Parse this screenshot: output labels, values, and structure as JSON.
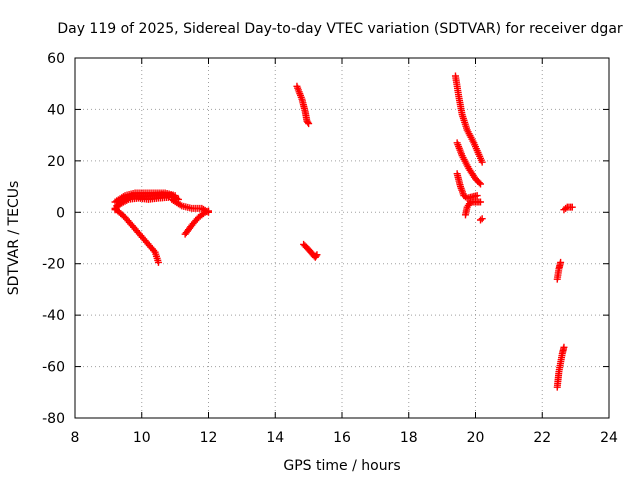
{
  "chart_data": {
    "type": "scatter",
    "title": "Day 119 of 2025, Sidereal Day-to-day VTEC variation (SDTVAR) for receiver dgar",
    "xlabel": "GPS time / hours",
    "ylabel": "SDTVAR / TECUs",
    "xlim": [
      8,
      24
    ],
    "ylim": [
      -80,
      60
    ],
    "xticks": [
      8,
      10,
      12,
      14,
      16,
      18,
      20,
      22,
      24
    ],
    "yticks": [
      -80,
      -60,
      -40,
      -20,
      0,
      20,
      40,
      60
    ],
    "grid": true,
    "marker": "plus",
    "color": "#ff0000",
    "segments": [
      {
        "points": [
          [
            9.2,
            1
          ],
          [
            9.4,
            4.5
          ],
          [
            9.7,
            6.5
          ],
          [
            10.0,
            6
          ],
          [
            10.3,
            6.5
          ],
          [
            10.6,
            6.8
          ],
          [
            10.9,
            6.5
          ],
          [
            11.1,
            5
          ]
        ]
      },
      {
        "points": [
          [
            9.2,
            4
          ],
          [
            9.5,
            6.5
          ],
          [
            9.8,
            7.5
          ],
          [
            10.1,
            7.5
          ],
          [
            10.4,
            7.5
          ],
          [
            10.7,
            7.5
          ],
          [
            11.0,
            6.5
          ]
        ]
      },
      {
        "points": [
          [
            9.25,
            2.5
          ],
          [
            9.6,
            5
          ],
          [
            9.9,
            5.5
          ],
          [
            10.2,
            5
          ],
          [
            10.5,
            5.5
          ],
          [
            10.8,
            5.8
          ]
        ]
      },
      {
        "points": [
          [
            9.2,
            1.5
          ],
          [
            9.5,
            -2
          ],
          [
            9.8,
            -6.5
          ],
          [
            10.1,
            -11
          ],
          [
            10.4,
            -15.5
          ],
          [
            10.5,
            -19.5
          ]
        ]
      },
      {
        "points": [
          [
            10.9,
            5
          ],
          [
            11.2,
            2.5
          ],
          [
            11.5,
            1.5
          ],
          [
            11.8,
            1.5
          ],
          [
            12.0,
            0
          ]
        ]
      },
      {
        "points": [
          [
            11.3,
            -8.5
          ],
          [
            11.5,
            -5
          ],
          [
            11.7,
            -2
          ],
          [
            11.9,
            0
          ],
          [
            12.0,
            0.5
          ]
        ]
      },
      {
        "points": [
          [
            14.65,
            49
          ],
          [
            14.8,
            44
          ],
          [
            14.9,
            39
          ],
          [
            14.95,
            35.5
          ],
          [
            15.0,
            34.5
          ]
        ]
      },
      {
        "points": [
          [
            14.85,
            -12.5
          ],
          [
            15.0,
            -14.5
          ],
          [
            15.1,
            -16
          ],
          [
            15.2,
            -17.5
          ],
          [
            15.25,
            -16.5
          ]
        ]
      },
      {
        "points": [
          [
            19.4,
            53
          ],
          [
            19.5,
            45
          ],
          [
            19.6,
            38
          ],
          [
            19.75,
            32
          ],
          [
            19.95,
            27
          ],
          [
            20.2,
            19.5
          ]
        ]
      },
      {
        "points": [
          [
            19.45,
            27
          ],
          [
            19.6,
            22
          ],
          [
            19.8,
            17
          ],
          [
            20.0,
            13
          ],
          [
            20.15,
            11
          ]
        ]
      },
      {
        "points": [
          [
            19.45,
            15
          ],
          [
            19.55,
            10
          ],
          [
            19.65,
            6.5
          ],
          [
            19.75,
            5.5
          ],
          [
            19.9,
            6
          ],
          [
            20.05,
            6.5
          ]
        ]
      },
      {
        "points": [
          [
            19.7,
            -1
          ],
          [
            19.75,
            2
          ],
          [
            19.85,
            4
          ],
          [
            20.0,
            4
          ],
          [
            20.15,
            4
          ]
        ]
      },
      {
        "points": [
          [
            20.15,
            -3
          ],
          [
            20.2,
            -2.5
          ]
        ]
      },
      {
        "points": [
          [
            22.45,
            -26
          ],
          [
            22.5,
            -22
          ],
          [
            22.55,
            -19.5
          ]
        ]
      },
      {
        "points": [
          [
            22.45,
            -68
          ],
          [
            22.5,
            -62
          ],
          [
            22.6,
            -55
          ],
          [
            22.65,
            -52.5
          ]
        ]
      },
      {
        "points": [
          [
            22.65,
            1
          ],
          [
            22.75,
            2
          ],
          [
            22.9,
            2
          ]
        ]
      }
    ]
  }
}
